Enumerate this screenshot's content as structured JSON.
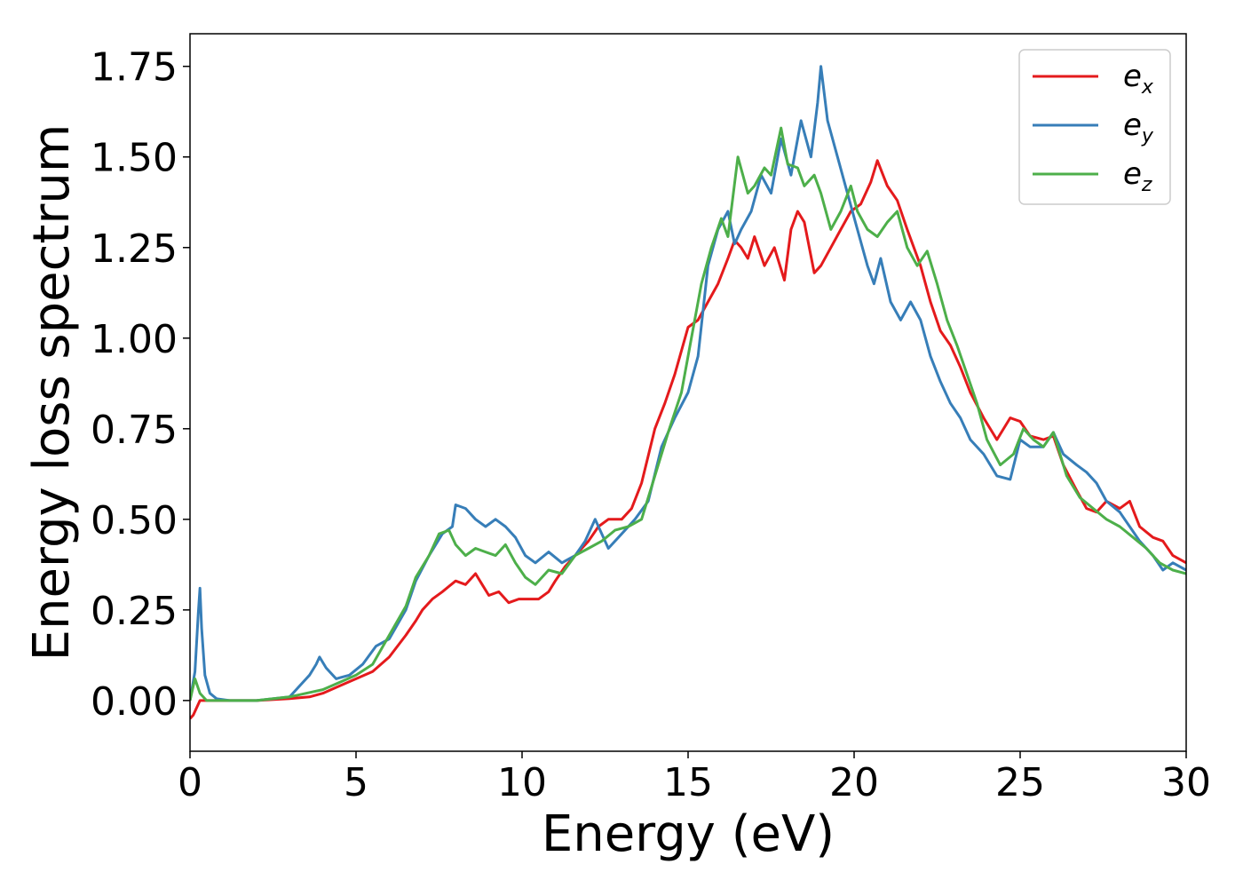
{
  "chart_data": {
    "type": "line",
    "title": "",
    "xlabel": "Energy (eV)",
    "ylabel": "Energy loss spectrum",
    "xlim": [
      0,
      30
    ],
    "ylim": [
      -0.14,
      1.84
    ],
    "xticks": [
      0,
      5,
      10,
      15,
      20,
      25,
      30
    ],
    "xtick_labels": [
      "0",
      "5",
      "10",
      "15",
      "20",
      "25",
      "30"
    ],
    "yticks": [
      0.0,
      0.25,
      0.5,
      0.75,
      1.0,
      1.25,
      1.5,
      1.75
    ],
    "ytick_labels": [
      "0.00",
      "0.25",
      "0.50",
      "0.75",
      "1.00",
      "1.25",
      "1.50",
      "1.75"
    ],
    "grid": false,
    "legend_position": "top-right",
    "series": [
      {
        "name": "e_x",
        "legend_base": "e",
        "legend_sub": "x",
        "color": "#e41a1c",
        "x": [
          0,
          0.1,
          0.3,
          0.6,
          1.0,
          2.0,
          3.0,
          3.6,
          4.0,
          4.5,
          5.0,
          5.5,
          6.0,
          6.5,
          6.8,
          7.0,
          7.3,
          7.6,
          8.0,
          8.3,
          8.6,
          8.8,
          9.0,
          9.3,
          9.6,
          9.9,
          10.2,
          10.5,
          10.8,
          11.0,
          11.3,
          11.6,
          12.0,
          12.3,
          12.6,
          13.0,
          13.3,
          13.6,
          14.0,
          14.3,
          14.6,
          15.0,
          15.3,
          15.6,
          15.9,
          16.2,
          16.4,
          16.6,
          16.8,
          17.0,
          17.3,
          17.6,
          17.9,
          18.1,
          18.3,
          18.5,
          18.8,
          19.0,
          19.3,
          19.6,
          19.9,
          20.2,
          20.5,
          20.7,
          21.0,
          21.3,
          21.6,
          22.0,
          22.3,
          22.6,
          22.9,
          23.2,
          23.5,
          23.9,
          24.3,
          24.7,
          25.0,
          25.3,
          25.7,
          26.0,
          26.3,
          26.7,
          27.0,
          27.3,
          27.6,
          28.0,
          28.3,
          28.6,
          29.0,
          29.3,
          29.6,
          30.0
        ],
        "y": [
          -0.05,
          -0.04,
          0.0,
          0.0,
          0.0,
          0.0,
          0.005,
          0.01,
          0.02,
          0.04,
          0.06,
          0.08,
          0.12,
          0.18,
          0.22,
          0.25,
          0.28,
          0.3,
          0.33,
          0.32,
          0.35,
          0.32,
          0.29,
          0.3,
          0.27,
          0.28,
          0.28,
          0.28,
          0.3,
          0.33,
          0.37,
          0.4,
          0.44,
          0.48,
          0.5,
          0.5,
          0.53,
          0.6,
          0.75,
          0.82,
          0.9,
          1.03,
          1.05,
          1.1,
          1.15,
          1.22,
          1.27,
          1.25,
          1.22,
          1.28,
          1.2,
          1.25,
          1.16,
          1.3,
          1.35,
          1.32,
          1.18,
          1.2,
          1.25,
          1.3,
          1.35,
          1.37,
          1.43,
          1.49,
          1.42,
          1.38,
          1.3,
          1.2,
          1.1,
          1.02,
          0.98,
          0.92,
          0.85,
          0.78,
          0.72,
          0.78,
          0.77,
          0.73,
          0.72,
          0.73,
          0.65,
          0.58,
          0.53,
          0.52,
          0.55,
          0.53,
          0.55,
          0.48,
          0.45,
          0.44,
          0.4,
          0.38
        ]
      },
      {
        "name": "e_y",
        "legend_base": "e",
        "legend_sub": "y",
        "color": "#377eb8",
        "x": [
          0,
          0.15,
          0.25,
          0.3,
          0.35,
          0.45,
          0.6,
          0.8,
          1.2,
          2.0,
          3.0,
          3.3,
          3.6,
          3.8,
          3.9,
          4.1,
          4.4,
          4.8,
          5.2,
          5.6,
          6.0,
          6.5,
          6.8,
          7.2,
          7.6,
          7.9,
          8.0,
          8.3,
          8.6,
          8.9,
          9.2,
          9.5,
          9.8,
          10.1,
          10.4,
          10.8,
          11.2,
          11.6,
          11.9,
          12.2,
          12.6,
          13.0,
          13.4,
          13.8,
          14.2,
          14.6,
          15.0,
          15.3,
          15.6,
          15.9,
          16.2,
          16.4,
          16.6,
          16.9,
          17.2,
          17.5,
          17.8,
          18.1,
          18.4,
          18.7,
          18.9,
          19.0,
          19.2,
          19.5,
          19.8,
          20.1,
          20.4,
          20.6,
          20.8,
          21.1,
          21.4,
          21.7,
          22.0,
          22.3,
          22.6,
          22.9,
          23.2,
          23.5,
          23.9,
          24.3,
          24.7,
          25.0,
          25.3,
          25.7,
          26.0,
          26.3,
          26.7,
          27.0,
          27.3,
          27.6,
          28.0,
          28.3,
          28.6,
          29.0,
          29.3,
          29.6,
          30.0
        ],
        "y": [
          0.0,
          0.08,
          0.24,
          0.31,
          0.2,
          0.07,
          0.02,
          0.005,
          0.0,
          0.0,
          0.01,
          0.04,
          0.07,
          0.1,
          0.12,
          0.09,
          0.06,
          0.07,
          0.1,
          0.15,
          0.17,
          0.25,
          0.33,
          0.4,
          0.46,
          0.48,
          0.54,
          0.53,
          0.5,
          0.48,
          0.5,
          0.48,
          0.45,
          0.4,
          0.38,
          0.41,
          0.38,
          0.4,
          0.44,
          0.5,
          0.42,
          0.46,
          0.5,
          0.55,
          0.7,
          0.78,
          0.85,
          0.95,
          1.2,
          1.3,
          1.35,
          1.26,
          1.3,
          1.35,
          1.45,
          1.4,
          1.55,
          1.45,
          1.6,
          1.5,
          1.65,
          1.75,
          1.6,
          1.5,
          1.4,
          1.3,
          1.2,
          1.15,
          1.22,
          1.1,
          1.05,
          1.1,
          1.05,
          0.95,
          0.88,
          0.82,
          0.78,
          0.72,
          0.68,
          0.62,
          0.61,
          0.72,
          0.7,
          0.7,
          0.74,
          0.68,
          0.65,
          0.63,
          0.6,
          0.55,
          0.52,
          0.48,
          0.44,
          0.4,
          0.36,
          0.38,
          0.36
        ]
      },
      {
        "name": "e_z",
        "legend_base": "e",
        "legend_sub": "z",
        "color": "#4daf4a",
        "x": [
          0,
          0.1,
          0.15,
          0.3,
          0.5,
          0.8,
          1.2,
          2.0,
          3.0,
          3.5,
          4.0,
          4.5,
          5.0,
          5.5,
          6.0,
          6.5,
          6.8,
          7.2,
          7.5,
          7.8,
          8.0,
          8.3,
          8.6,
          8.9,
          9.2,
          9.5,
          9.8,
          10.1,
          10.4,
          10.8,
          11.2,
          11.6,
          12.0,
          12.4,
          12.8,
          13.2,
          13.6,
          14.0,
          14.4,
          14.8,
          15.1,
          15.4,
          15.7,
          16.0,
          16.2,
          16.5,
          16.8,
          17.0,
          17.3,
          17.5,
          17.8,
          18.0,
          18.3,
          18.5,
          18.8,
          19.0,
          19.3,
          19.6,
          19.9,
          20.1,
          20.4,
          20.7,
          21.0,
          21.3,
          21.6,
          21.9,
          22.2,
          22.5,
          22.8,
          23.1,
          23.4,
          23.7,
          24.0,
          24.4,
          24.8,
          25.1,
          25.4,
          25.7,
          26.0,
          26.4,
          26.8,
          27.2,
          27.6,
          28.0,
          28.4,
          28.8,
          29.2,
          29.6,
          30.0
        ],
        "y": [
          0.0,
          0.04,
          0.06,
          0.02,
          0.0,
          0.0,
          0.0,
          0.0,
          0.01,
          0.02,
          0.03,
          0.05,
          0.07,
          0.1,
          0.18,
          0.26,
          0.34,
          0.4,
          0.46,
          0.47,
          0.43,
          0.4,
          0.42,
          0.41,
          0.4,
          0.43,
          0.38,
          0.34,
          0.32,
          0.36,
          0.35,
          0.4,
          0.42,
          0.44,
          0.47,
          0.48,
          0.5,
          0.62,
          0.74,
          0.85,
          1.0,
          1.15,
          1.25,
          1.33,
          1.28,
          1.5,
          1.4,
          1.42,
          1.47,
          1.45,
          1.58,
          1.48,
          1.47,
          1.42,
          1.45,
          1.4,
          1.3,
          1.35,
          1.42,
          1.35,
          1.3,
          1.28,
          1.32,
          1.35,
          1.25,
          1.2,
          1.24,
          1.15,
          1.05,
          0.98,
          0.9,
          0.82,
          0.72,
          0.65,
          0.68,
          0.75,
          0.72,
          0.7,
          0.74,
          0.62,
          0.56,
          0.53,
          0.5,
          0.48,
          0.45,
          0.42,
          0.38,
          0.36,
          0.35
        ]
      }
    ]
  }
}
